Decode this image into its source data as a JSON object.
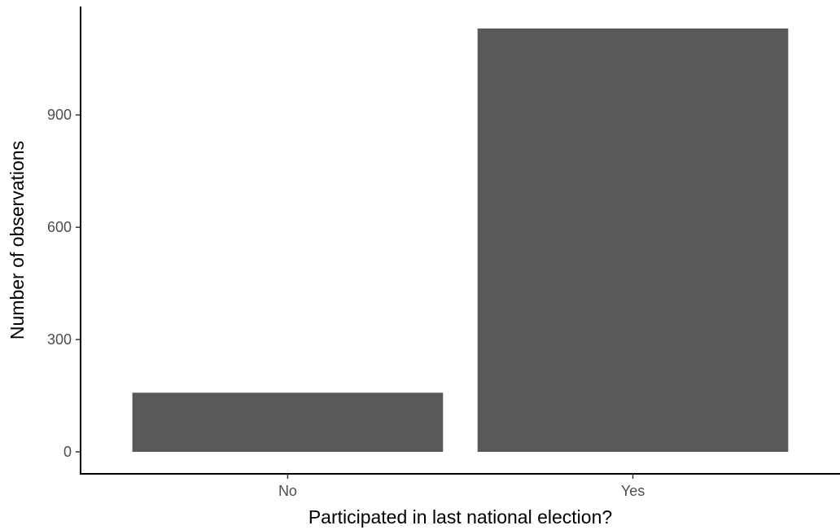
{
  "chart_data": {
    "type": "bar",
    "categories": [
      "No",
      "Yes"
    ],
    "values": [
      158,
      1131
    ],
    "title": "",
    "xlabel": "Participated in last national election?",
    "ylabel": "Number of observations",
    "ylim": [
      0,
      1131
    ],
    "yticks": [
      0,
      300,
      600,
      900
    ],
    "grid": false,
    "bar_color": "#595959"
  }
}
